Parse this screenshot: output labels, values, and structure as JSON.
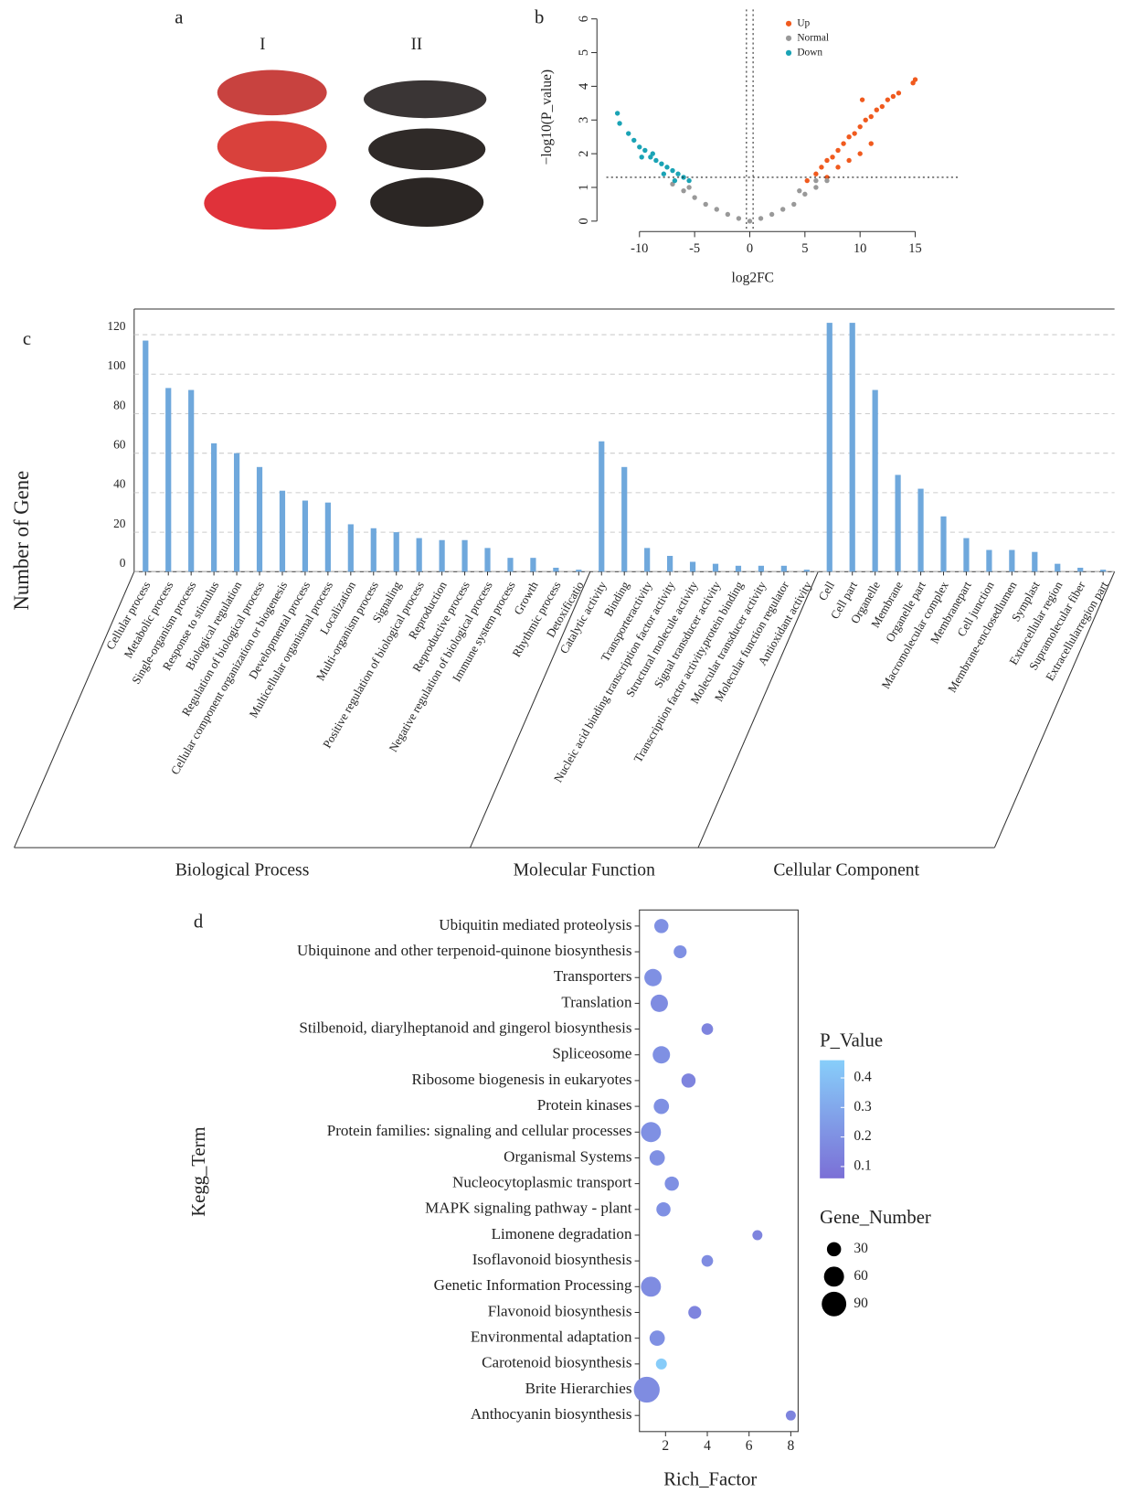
{
  "figure_a": {
    "panel_label": "a",
    "columns": [
      "I",
      "II"
    ]
  },
  "chart_data": [
    {
      "type": "scatter",
      "panel_label": "b",
      "x_label": "log2FC",
      "y_label": "−log10(P_value)",
      "xlim": [
        -13,
        19
      ],
      "ylim": [
        0,
        6
      ],
      "xticks": [
        -10,
        -5,
        0,
        5,
        10,
        15
      ],
      "yticks": [
        0,
        1,
        2,
        3,
        4,
        5,
        6
      ],
      "threshold_x": [
        -0.3,
        0.3
      ],
      "threshold_y": 1.3,
      "legend": "top-right",
      "series": [
        {
          "name": "Up",
          "color": "#f05a1e",
          "x": [
            5.2,
            6,
            6.5,
            7,
            7.5,
            8,
            8.5,
            9,
            9.5,
            10,
            10.5,
            11,
            11.5,
            12,
            12.5,
            13,
            13.5,
            15,
            14.8,
            10.2,
            8,
            9,
            10,
            11,
            7
          ],
          "values": [
            1.2,
            1.4,
            1.6,
            1.8,
            1.9,
            2.1,
            2.3,
            2.5,
            2.6,
            2.8,
            3.0,
            3.1,
            3.3,
            3.4,
            3.6,
            3.7,
            3.8,
            4.2,
            4.1,
            3.6,
            1.6,
            1.8,
            2.0,
            2.3,
            1.3
          ]
        },
        {
          "name": "Normal",
          "color": "#999999",
          "x": [
            -7,
            -6,
            -5,
            -4,
            -3,
            -2,
            -1,
            0,
            1,
            2,
            3,
            4,
            5,
            6,
            7,
            -5.5,
            4.5,
            6
          ],
          "values": [
            1.1,
            0.9,
            0.7,
            0.5,
            0.35,
            0.2,
            0.08,
            0,
            0.08,
            0.2,
            0.35,
            0.5,
            0.8,
            1.0,
            1.2,
            1.0,
            0.9,
            1.2
          ]
        },
        {
          "name": "Down",
          "color": "#1aa3b5",
          "x": [
            -12,
            -11.8,
            -11,
            -10.5,
            -10,
            -9.5,
            -9,
            -8.5,
            -8,
            -7.5,
            -7,
            -6.5,
            -6,
            -5.5,
            -8.8,
            -7.8,
            -6.8,
            -9.8
          ],
          "values": [
            3.2,
            2.9,
            2.6,
            2.4,
            2.2,
            2.1,
            1.9,
            1.8,
            1.7,
            1.6,
            1.5,
            1.4,
            1.3,
            1.2,
            2.0,
            1.4,
            1.2,
            1.9
          ]
        }
      ]
    },
    {
      "type": "bar",
      "panel_label": "c",
      "y_label": "Number of Gene",
      "color": "#6fa8dc",
      "ylim": [
        0,
        133
      ],
      "yticks": [
        0,
        20,
        40,
        60,
        80,
        100,
        120
      ],
      "grid": true,
      "groups": [
        {
          "name": "Biological Process",
          "categories": [
            "Cellular process",
            "Metabolic process",
            "Single-organism process",
            "Response to stimulus",
            "Biological regulation",
            "Regulation of biological process",
            "Cellular component organization or biogenesis",
            "Developmental process",
            "Multicellular organismal process",
            "Localization",
            "Multi-organism process",
            "Signaling",
            "Positive regulation of biological process",
            "Reproduction",
            "Reproductive process",
            "Negative regulation of biological process",
            "Immune system process",
            "Growth",
            "Rhythmic process",
            "Detoxificatio"
          ],
          "values": [
            117,
            93,
            92,
            65,
            60,
            53,
            41,
            36,
            35,
            24,
            22,
            20,
            17,
            16,
            16,
            12,
            7,
            7,
            2,
            1
          ]
        },
        {
          "name": "Molecular Function",
          "categories": [
            "Catalytic activity",
            "Binding",
            "Transporteractivity",
            "Nucleic acid binding transcription factor activity",
            "Structural molecule activity",
            "Signal transducer activity",
            "Transcription factor activity,protein binding",
            "Molecular transducer activity",
            "Molecular function regulator",
            "Antioxidant activity"
          ],
          "values": [
            66,
            53,
            12,
            8,
            5,
            4,
            3,
            3,
            3,
            1
          ]
        },
        {
          "name": "Cellular Component",
          "categories": [
            "Cell",
            "Cell part",
            "Organelle",
            "Membrane",
            "Organelle part",
            "Macromolecular complex",
            "Membranepart",
            "Cell junction",
            "Membrane-enclosedlumen",
            "Symplast",
            "Extracellular region",
            "Supramolecular fiber",
            "Extracellularregion part"
          ],
          "values": [
            126,
            126,
            92,
            49,
            42,
            28,
            17,
            11,
            11,
            10,
            4,
            2,
            1
          ]
        }
      ]
    },
    {
      "type": "bubble",
      "panel_label": "d",
      "x_label": "Rich_Factor",
      "y_label": "Kegg_Term",
      "xlim": [
        0.75,
        8.35
      ],
      "xticks": [
        2,
        4,
        6,
        8
      ],
      "categories": [
        "Ubiquitin mediated proteolysis",
        "Ubiquinone and other terpenoid-quinone biosynthesis",
        "Transporters",
        "Translation",
        "Stilbenoid, diarylheptanoid and gingerol biosynthesis",
        "Spliceosome",
        "Ribosome biogenesis in eukaryotes",
        "Protein kinases",
        "Protein families: signaling and cellular processes",
        "Organismal Systems",
        "Nucleocytoplasmic transport",
        "MAPK signaling pathway - plant",
        "Limonene degradation",
        "Isoflavonoid biosynthesis",
        "Genetic Information Processing",
        "Flavonoid biosynthesis",
        "Environmental adaptation",
        "Carotenoid biosynthesis",
        "Brite Hierarchies",
        "Anthocyanin biosynthesis"
      ],
      "x": [
        1.8,
        2.7,
        1.4,
        1.7,
        4.0,
        1.8,
        3.1,
        1.8,
        1.3,
        1.6,
        2.3,
        1.9,
        6.4,
        4.0,
        1.3,
        3.4,
        1.6,
        1.8,
        1.1,
        8.0
      ],
      "sizes": [
        30,
        25,
        45,
        45,
        20,
        45,
        30,
        35,
        60,
        35,
        30,
        30,
        15,
        20,
        60,
        25,
        35,
        18,
        100,
        15
      ],
      "p_values": [
        0.2,
        0.2,
        0.2,
        0.18,
        0.15,
        0.2,
        0.15,
        0.2,
        0.2,
        0.2,
        0.2,
        0.2,
        0.15,
        0.18,
        0.18,
        0.15,
        0.2,
        0.45,
        0.18,
        0.15
      ],
      "color_title": "P_Value",
      "color_range": [
        "#7b6fd6",
        "#87cefa"
      ],
      "clim": [
        0.06,
        0.46
      ],
      "cticks": [
        0.1,
        0.2,
        0.3,
        0.4
      ],
      "size_title": "Gene_Number",
      "size_ticks": [
        30,
        60,
        90
      ]
    }
  ]
}
